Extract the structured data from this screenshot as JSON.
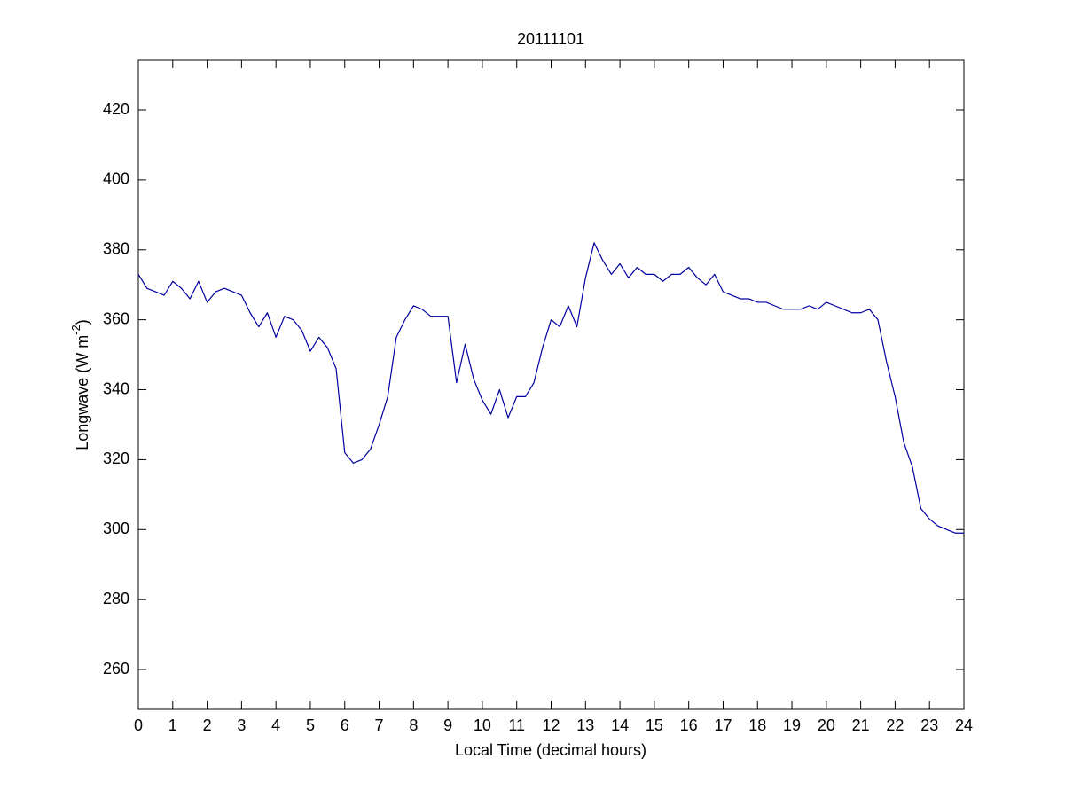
{
  "chart_data": {
    "type": "line",
    "title": "20111101",
    "xlabel": "Local Time (decimal hours)",
    "ylabel": {
      "text": "Longwave (W m",
      "superscript": "-2",
      "suffix": ")"
    },
    "x": [
      0,
      0.25,
      0.5,
      0.75,
      1,
      1.25,
      1.5,
      1.75,
      2,
      2.25,
      2.5,
      2.75,
      3,
      3.25,
      3.5,
      3.75,
      4,
      4.25,
      4.5,
      4.75,
      5,
      5.25,
      5.5,
      5.75,
      6,
      6.25,
      6.5,
      6.75,
      7,
      7.25,
      7.5,
      7.75,
      8,
      8.25,
      8.5,
      8.75,
      9,
      9.25,
      9.5,
      9.75,
      10,
      10.25,
      10.5,
      10.75,
      11,
      11.25,
      11.5,
      11.75,
      12,
      12.25,
      12.5,
      12.75,
      13,
      13.25,
      13.5,
      13.75,
      14,
      14.25,
      14.5,
      14.75,
      15,
      15.25,
      15.5,
      15.75,
      16,
      16.25,
      16.5,
      16.75,
      17,
      17.25,
      17.5,
      17.75,
      18,
      18.25,
      18.5,
      18.75,
      19,
      19.25,
      19.5,
      19.75,
      20,
      20.25,
      20.5,
      20.75,
      21,
      21.25,
      21.5,
      21.75,
      22,
      22.25,
      22.5,
      22.75,
      23,
      23.25,
      23.5,
      23.75,
      24
    ],
    "series": [
      {
        "name": "Longwave",
        "color": "#0000a0",
        "values": [
          373,
          369,
          368,
          367,
          371,
          369,
          366,
          371,
          365,
          368,
          369,
          368,
          367,
          362,
          358,
          362,
          355,
          361,
          360,
          357,
          351,
          355,
          352,
          346,
          322,
          319,
          320,
          323,
          330,
          338,
          355,
          360,
          364,
          363,
          361,
          361,
          361,
          342,
          353,
          343,
          337,
          333,
          340,
          332,
          338,
          338,
          342,
          352,
          360,
          358,
          364,
          358,
          372,
          382,
          377,
          373,
          376,
          372,
          375,
          373,
          373,
          371,
          373,
          373,
          375,
          372,
          370,
          373,
          368,
          367,
          366,
          366,
          365,
          365,
          364,
          363,
          363,
          363,
          364,
          363,
          365,
          364,
          363,
          362,
          362,
          363,
          360,
          348,
          338,
          325,
          318,
          306,
          303,
          301,
          300,
          299,
          299
        ]
      }
    ],
    "xlim": [
      0,
      24
    ],
    "xticks": [
      0,
      1,
      2,
      3,
      4,
      5,
      6,
      7,
      8,
      9,
      10,
      11,
      12,
      13,
      14,
      15,
      16,
      17,
      18,
      19,
      20,
      21,
      22,
      23,
      24
    ],
    "ylim": [
      248.6,
      434.2
    ],
    "yticks": [
      260,
      280,
      300,
      320,
      340,
      360,
      380,
      400,
      420
    ],
    "grid": false
  }
}
